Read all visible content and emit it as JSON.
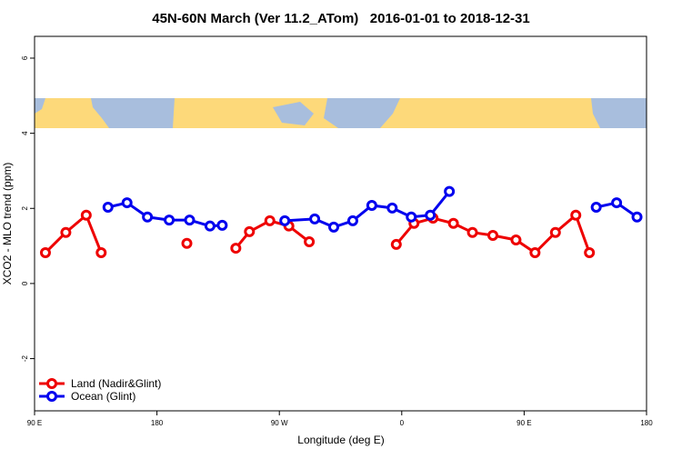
{
  "chart_data": {
    "type": "line",
    "title": "45N-60N March (Ver 11.2_ATom)   2016-01-01 to 2018-12-31",
    "x_label": "Longitude (deg E)",
    "y_label": "XCO2 - MLO trend (ppm)",
    "xlim": [
      90,
      540
    ],
    "ylim": [
      -3.39,
      6.58
    ],
    "xticks": [
      {
        "value": 90,
        "label": "90 E"
      },
      180,
      {
        "value": 270,
        "label": "90 W"
      },
      {
        "value": 360,
        "label": "0"
      },
      {
        "value": 450,
        "label": "90 E"
      },
      {
        "value": 540,
        "label": "180"
      }
    ],
    "yticks": [
      -2,
      0,
      2,
      4,
      6
    ],
    "legend": "bottomleft",
    "series": [
      {
        "name": "Land (Nadir&Glint)",
        "color": "#ee0000",
        "x": [
          98,
          113,
          128,
          139,
          null,
          202,
          null,
          238,
          248,
          263,
          277,
          292,
          null,
          356,
          369,
          383,
          398,
          412,
          427,
          444,
          458,
          473,
          488,
          498
        ],
        "values": [
          0.82,
          1.36,
          1.82,
          0.82,
          null,
          1.07,
          null,
          0.94,
          1.38,
          1.67,
          1.53,
          1.11,
          null,
          1.04,
          1.6,
          1.74,
          1.6,
          1.36,
          1.28,
          1.16,
          0.82,
          1.36,
          1.82,
          0.82
        ]
      },
      {
        "name": "Ocean (Glint)",
        "color": "#0000ee",
        "x": [
          144,
          158,
          173,
          189,
          204,
          219,
          228,
          null,
          274,
          296,
          310,
          324,
          338,
          353,
          367,
          381,
          395,
          null,
          503,
          518,
          533
        ],
        "values": [
          2.03,
          2.15,
          1.77,
          1.69,
          1.69,
          1.53,
          1.55,
          null,
          1.67,
          1.72,
          1.5,
          1.67,
          2.08,
          2.01,
          1.77,
          1.82,
          2.45,
          null,
          2.03,
          2.15,
          1.77
        ]
      }
    ]
  }
}
